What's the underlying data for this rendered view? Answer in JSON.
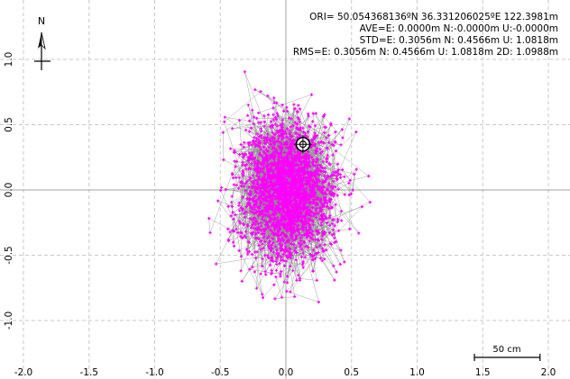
{
  "chart_data": {
    "type": "scatter",
    "xlim": [
      -2.0,
      2.0
    ],
    "ylim": [
      -1.33,
      1.33
    ],
    "x_ticks": [
      -2.0,
      -1.5,
      -1.0,
      -0.5,
      0.0,
      0.5,
      1.0,
      1.5,
      2.0
    ],
    "y_ticks": [
      -1.0,
      -0.5,
      0.0,
      0.5,
      1.0
    ],
    "x_tick_labels": [
      "-2.0",
      "-1.5",
      "-1.0",
      "-0.5",
      "0.0",
      "0.5",
      "1.0",
      "1.5",
      "2.0"
    ],
    "y_tick_labels": [
      "-1.0",
      "-0.5",
      "0.0",
      "0.5",
      "1.0"
    ],
    "grid": true,
    "point_color": "#ff00ff",
    "trace_color": "#8c8c8c",
    "grid_color": "#c8c8c8",
    "axis_color": "#a0a0a0",
    "marker": {
      "x": 0.13,
      "y": 0.35
    },
    "cloud": {
      "center": {
        "x": 0.0,
        "y": 0.0
      },
      "std": {
        "x": 0.3056,
        "y": 0.4566
      }
    },
    "info_lines": [
      "ORI= 50.054368136ºN  36.331206025ºE 122.3981m",
      "AVE=E: 0.0000m N:-0.0000m U:-0.0000m",
      "STD=E: 0.3056m N: 0.4566m U: 1.0818m",
      "RMS=E: 0.3056m N: 0.4566m U: 1.0818m 2D: 1.0988m"
    ],
    "north_label": "N",
    "scale_bar": {
      "label": "50 cm",
      "length": 0.5
    }
  }
}
